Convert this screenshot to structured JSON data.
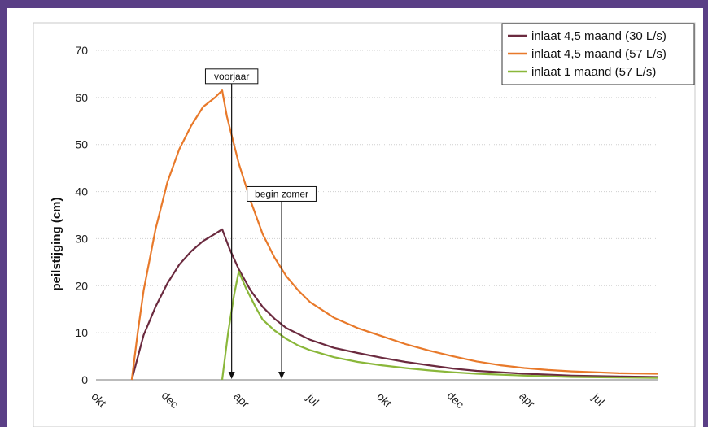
{
  "chart_data": {
    "type": "line",
    "title": "",
    "xlabel": "",
    "ylabel": "peilstijging (cm)",
    "ylim": [
      0,
      70
    ],
    "yticks": [
      0,
      10,
      20,
      30,
      40,
      50,
      60,
      70
    ],
    "xlim": [
      0,
      23.6
    ],
    "xticks": [
      {
        "label": "okt",
        "x": 0
      },
      {
        "label": "dec",
        "x": 3
      },
      {
        "label": "apr",
        "x": 6
      },
      {
        "label": "jul",
        "x": 9
      },
      {
        "label": "okt",
        "x": 12
      },
      {
        "label": "dec",
        "x": 15
      },
      {
        "label": "apr",
        "x": 18
      },
      {
        "label": "jul",
        "x": 21
      }
    ],
    "grid": "horizontal",
    "legend": "top-right",
    "series": [
      {
        "name": "inlaat 4,5 maand (30 L/s)",
        "color": "#6b2a3f",
        "points": [
          [
            1.5,
            0
          ],
          [
            2.0,
            9.5
          ],
          [
            2.5,
            15.5
          ],
          [
            3.0,
            20.5
          ],
          [
            3.5,
            24.5
          ],
          [
            4.0,
            27.3
          ],
          [
            4.5,
            29.5
          ],
          [
            5.0,
            31.0
          ],
          [
            5.3,
            32.0
          ],
          [
            5.6,
            28
          ],
          [
            6.0,
            23.5
          ],
          [
            6.5,
            19
          ],
          [
            7.0,
            15.5
          ],
          [
            7.5,
            13
          ],
          [
            8.0,
            11
          ],
          [
            9.0,
            8.5
          ],
          [
            10.0,
            6.8
          ],
          [
            11.0,
            5.7
          ],
          [
            12.0,
            4.7
          ],
          [
            13.0,
            3.8
          ],
          [
            14.0,
            3.1
          ],
          [
            15.0,
            2.4
          ],
          [
            16.0,
            1.9
          ],
          [
            17.0,
            1.6
          ],
          [
            18.0,
            1.3
          ],
          [
            19.0,
            1.1
          ],
          [
            20.0,
            0.9
          ],
          [
            21.0,
            0.8
          ],
          [
            22.0,
            0.7
          ],
          [
            23.6,
            0.6
          ]
        ]
      },
      {
        "name": "inlaat 4,5 maand (57 L/s)",
        "color": "#e8792a",
        "points": [
          [
            1.5,
            0
          ],
          [
            1.75,
            10
          ],
          [
            2.0,
            19
          ],
          [
            2.5,
            32
          ],
          [
            3.0,
            42
          ],
          [
            3.5,
            49
          ],
          [
            4.0,
            54
          ],
          [
            4.5,
            58
          ],
          [
            5.0,
            60
          ],
          [
            5.3,
            61.5
          ],
          [
            5.5,
            56
          ],
          [
            6.0,
            46
          ],
          [
            6.5,
            38
          ],
          [
            7.0,
            31
          ],
          [
            7.5,
            26
          ],
          [
            8.0,
            22
          ],
          [
            8.5,
            19
          ],
          [
            9.0,
            16.5
          ],
          [
            10.0,
            13.2
          ],
          [
            11.0,
            11
          ],
          [
            12.0,
            9.3
          ],
          [
            13.0,
            7.6
          ],
          [
            14.0,
            6.2
          ],
          [
            15.0,
            5
          ],
          [
            16.0,
            3.9
          ],
          [
            17.0,
            3.1
          ],
          [
            18.0,
            2.5
          ],
          [
            19.0,
            2.1
          ],
          [
            20.0,
            1.8
          ],
          [
            21.0,
            1.6
          ],
          [
            22.0,
            1.4
          ],
          [
            23.6,
            1.3
          ]
        ]
      },
      {
        "name": "inlaat 1 maand (57 L/s)",
        "color": "#8ab73a",
        "points": [
          [
            5.3,
            0
          ],
          [
            5.55,
            10
          ],
          [
            5.8,
            18
          ],
          [
            6.0,
            23
          ],
          [
            6.3,
            19.5
          ],
          [
            6.7,
            15.5
          ],
          [
            7.0,
            12.8
          ],
          [
            7.5,
            10.5
          ],
          [
            8.0,
            8.7
          ],
          [
            8.5,
            7.3
          ],
          [
            9.0,
            6.3
          ],
          [
            10.0,
            4.8
          ],
          [
            11.0,
            3.8
          ],
          [
            12.0,
            3.1
          ],
          [
            13.0,
            2.5
          ],
          [
            14.0,
            2.0
          ],
          [
            15.0,
            1.6
          ],
          [
            16.0,
            1.3
          ],
          [
            17.0,
            1.1
          ],
          [
            18.0,
            0.9
          ],
          [
            20.0,
            0.6
          ],
          [
            22.0,
            0.5
          ],
          [
            23.6,
            0.4
          ]
        ]
      }
    ],
    "annotations": [
      {
        "text": "voorjaar",
        "x": 5.7,
        "label_y": 64.5
      },
      {
        "text": "begin zomer",
        "x": 7.8,
        "label_y": 39.5
      }
    ]
  }
}
